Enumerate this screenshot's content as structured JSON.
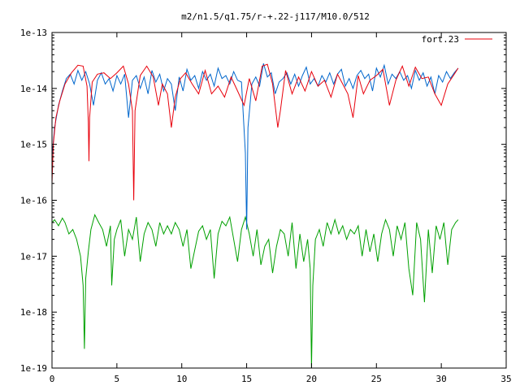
{
  "chart_data": {
    "type": "line",
    "title": "m2/n1.5/q1.75/r-+.22-j117/M10.0/512",
    "xlabel": "",
    "ylabel": "",
    "xlim": [
      0,
      35
    ],
    "ylim": [
      1e-19,
      1e-13
    ],
    "yscale": "log",
    "grid": false,
    "legend_position": "top-right",
    "x_ticks": [
      0,
      5,
      10,
      15,
      20,
      25,
      30,
      35
    ],
    "x_tick_labels": [
      "0",
      "5",
      "10",
      "15",
      "20",
      "25",
      "30",
      "35"
    ],
    "y_ticks": [
      1e-19,
      1e-18,
      1e-17,
      1e-16,
      1e-15,
      1e-14,
      1e-13
    ],
    "y_tick_labels": [
      "1e-19",
      "1e-18",
      "1e-17",
      "1e-16",
      "1e-15",
      "1e-14",
      "1e-13"
    ],
    "series": [
      {
        "name": "fort.23",
        "color": "#e8000b",
        "x": [
          0.0,
          0.1,
          0.3,
          0.6,
          1.0,
          1.5,
          2.0,
          2.4,
          2.7,
          2.8,
          2.85,
          2.9,
          3.1,
          3.5,
          4.0,
          4.5,
          5.0,
          5.5,
          5.9,
          6.2,
          6.3,
          6.4,
          6.8,
          7.3,
          7.8,
          8.2,
          8.5,
          8.9,
          9.2,
          9.5,
          9.9,
          10.3,
          10.8,
          11.3,
          11.8,
          12.3,
          12.8,
          13.3,
          13.8,
          14.3,
          14.8,
          15.2,
          15.7,
          16.2,
          16.6,
          17.0,
          17.4,
          17.6,
          18.0,
          18.5,
          19.0,
          19.5,
          20.0,
          20.5,
          21.0,
          21.5,
          22.0,
          22.4,
          22.8,
          23.2,
          23.6,
          24.0,
          24.5,
          25.0,
          25.5,
          26.0,
          26.5,
          27.0,
          27.5,
          28.0,
          28.5,
          29.0,
          29.5,
          30.0,
          30.5,
          31.0,
          31.3
        ],
        "y": [
          2e-16,
          1e-15,
          3e-15,
          6e-15,
          1.2e-14,
          1.9e-14,
          2.6e-14,
          2.5e-14,
          1.1e-14,
          2.5e-15,
          5e-16,
          3e-15,
          1.3e-14,
          1.8e-14,
          1.9e-14,
          1.5e-14,
          1.9e-14,
          2.5e-14,
          1.2e-14,
          4e-15,
          1e-16,
          4e-15,
          1.7e-14,
          2.5e-14,
          1.6e-14,
          5e-15,
          1.2e-14,
          8e-15,
          2e-15,
          7e-15,
          1.5e-14,
          1.9e-14,
          1.2e-14,
          8e-15,
          2.1e-14,
          8e-15,
          1.1e-14,
          7e-15,
          1.6e-14,
          9e-15,
          5e-15,
          1.5e-14,
          6e-15,
          2.5e-14,
          2.7e-14,
          1.2e-14,
          2e-15,
          4e-15,
          2.1e-14,
          8e-15,
          1.6e-14,
          9e-15,
          2e-14,
          1.1e-14,
          1.4e-14,
          7e-15,
          1.8e-14,
          1.2e-14,
          8e-15,
          3e-15,
          1.7e-14,
          8e-15,
          1.4e-14,
          1.7e-14,
          2.2e-14,
          5e-15,
          1.4e-14,
          2.5e-14,
          1.1e-14,
          2.4e-14,
          1.5e-14,
          1.6e-14,
          8e-15,
          5e-15,
          1.2e-14,
          1.8e-14,
          2.3e-14
        ]
      },
      {
        "name": "",
        "color": "#0066cc",
        "x": [
          0.0,
          0.2,
          0.5,
          0.8,
          1.1,
          1.4,
          1.7,
          2.0,
          2.3,
          2.6,
          2.9,
          3.2,
          3.5,
          3.8,
          4.1,
          4.4,
          4.7,
          5.0,
          5.3,
          5.6,
          5.9,
          6.2,
          6.5,
          6.8,
          7.1,
          7.4,
          7.7,
          8.0,
          8.3,
          8.6,
          8.9,
          9.2,
          9.5,
          9.8,
          10.1,
          10.4,
          10.7,
          11.0,
          11.3,
          11.6,
          11.9,
          12.2,
          12.5,
          12.8,
          13.1,
          13.4,
          13.7,
          14.0,
          14.3,
          14.6,
          14.9,
          15.0,
          15.1,
          15.4,
          15.7,
          16.0,
          16.3,
          16.6,
          16.9,
          17.2,
          17.5,
          17.8,
          18.1,
          18.4,
          18.7,
          19.0,
          19.3,
          19.6,
          19.9,
          20.2,
          20.5,
          20.8,
          21.1,
          21.4,
          21.7,
          22.0,
          22.3,
          22.6,
          22.9,
          23.2,
          23.5,
          23.8,
          24.1,
          24.4,
          24.7,
          25.0,
          25.3,
          25.6,
          25.9,
          26.2,
          26.5,
          26.8,
          27.1,
          27.4,
          27.7,
          28.0,
          28.3,
          28.6,
          28.9,
          29.2,
          29.5,
          29.8,
          30.1,
          30.4,
          30.7,
          31.0,
          31.3
        ],
        "y": [
          6e-16,
          2e-15,
          5e-15,
          9e-15,
          1.5e-14,
          1.8e-14,
          1.2e-14,
          2.1e-14,
          1.4e-14,
          2e-14,
          1.2e-14,
          5e-15,
          1.4e-14,
          1.9e-14,
          1.2e-14,
          1.5e-14,
          9e-15,
          1.7e-14,
          1.2e-14,
          1.8e-14,
          3e-15,
          1.4e-14,
          1.7e-14,
          1e-14,
          1.6e-14,
          8e-15,
          2.1e-14,
          1.3e-14,
          1.8e-14,
          9e-15,
          1.5e-14,
          1.2e-14,
          4e-15,
          1.6e-14,
          9e-15,
          2.2e-14,
          1.4e-14,
          1.7e-14,
          1e-14,
          2e-14,
          1.4e-14,
          1.8e-14,
          1.1e-14,
          2.3e-14,
          1.5e-14,
          1.7e-14,
          1.2e-14,
          2e-14,
          1.4e-14,
          1.3e-14,
          7e-16,
          3e-17,
          2e-15,
          1.2e-14,
          1.6e-14,
          1.1e-14,
          2.8e-14,
          1.6e-14,
          1.9e-14,
          8e-15,
          1.3e-14,
          1.5e-14,
          1.9e-14,
          1.2e-14,
          1.8e-14,
          1.1e-14,
          1.7e-14,
          2.4e-14,
          1.2e-14,
          1.5e-14,
          1.1e-14,
          1.7e-14,
          1.3e-14,
          1.9e-14,
          1.2e-14,
          1.8e-14,
          2.2e-14,
          1.1e-14,
          1.5e-14,
          1e-14,
          1.7e-14,
          2.1e-14,
          1.5e-14,
          1.8e-14,
          9e-15,
          2.3e-14,
          1.6e-14,
          2.6e-14,
          1.2e-14,
          1.8e-14,
          1.5e-14,
          2e-14,
          1.4e-14,
          1.7e-14,
          1e-14,
          2.1e-14,
          1.4e-14,
          1.9e-14,
          1.1e-14,
          1.6e-14,
          8e-15,
          1.7e-14,
          1.3e-14,
          2e-14,
          1.5e-14,
          1.9e-14,
          2.3e-14
        ]
      },
      {
        "name": "",
        "color": "#00a000",
        "x": [
          0.0,
          0.2,
          0.5,
          0.8,
          1.0,
          1.3,
          1.6,
          1.9,
          2.2,
          2.4,
          2.5,
          2.6,
          2.8,
          3.0,
          3.3,
          3.6,
          3.9,
          4.2,
          4.5,
          4.6,
          4.8,
          5.0,
          5.3,
          5.6,
          5.9,
          6.2,
          6.5,
          6.8,
          7.1,
          7.4,
          7.7,
          8.0,
          8.3,
          8.6,
          8.9,
          9.2,
          9.5,
          9.8,
          10.1,
          10.4,
          10.7,
          11.0,
          11.3,
          11.6,
          11.9,
          12.2,
          12.5,
          12.8,
          13.1,
          13.4,
          13.7,
          14.0,
          14.3,
          14.6,
          14.9,
          15.2,
          15.5,
          15.8,
          16.1,
          16.4,
          16.7,
          17.0,
          17.3,
          17.6,
          17.9,
          18.2,
          18.5,
          18.8,
          19.1,
          19.4,
          19.7,
          19.9,
          20.0,
          20.1,
          20.3,
          20.6,
          20.9,
          21.2,
          21.5,
          21.8,
          22.1,
          22.4,
          22.7,
          23.0,
          23.3,
          23.6,
          23.9,
          24.2,
          24.5,
          24.8,
          25.1,
          25.4,
          25.7,
          26.0,
          26.3,
          26.6,
          26.9,
          27.2,
          27.5,
          27.8,
          28.1,
          28.4,
          28.7,
          29.0,
          29.3,
          29.6,
          29.9,
          30.2,
          30.5,
          30.8,
          31.1,
          31.3
        ],
        "y": [
          4e-17,
          4.5e-17,
          3.5e-17,
          4.8e-17,
          4e-17,
          2.5e-17,
          3e-17,
          2e-17,
          1e-17,
          3e-18,
          2.2e-19,
          4e-18,
          1.2e-17,
          3e-17,
          5.5e-17,
          4e-17,
          3e-17,
          1.5e-17,
          3.5e-17,
          3e-18,
          2e-17,
          3e-17,
          4.5e-17,
          1e-17,
          3e-17,
          2e-17,
          5e-17,
          8e-18,
          2.5e-17,
          4e-17,
          3e-17,
          1.5e-17,
          4e-17,
          2.5e-17,
          3.5e-17,
          2.5e-17,
          4e-17,
          3e-17,
          1.5e-17,
          3e-17,
          6e-18,
          1.3e-17,
          2.8e-17,
          3.5e-17,
          2e-17,
          3e-17,
          4e-18,
          2.5e-17,
          4.2e-17,
          3.5e-17,
          5e-17,
          2e-17,
          8e-18,
          3e-17,
          5e-17,
          2.5e-17,
          1e-17,
          3e-17,
          7e-18,
          1.5e-17,
          2e-17,
          5e-18,
          1.5e-17,
          3e-17,
          2.5e-17,
          1e-17,
          4e-17,
          6e-18,
          2.5e-17,
          8e-18,
          2e-17,
          6e-18,
          1e-19,
          3e-18,
          2e-17,
          3e-17,
          1.5e-17,
          4e-17,
          2.5e-17,
          4.5e-17,
          2.5e-17,
          3.5e-17,
          2e-17,
          3e-17,
          2.5e-17,
          3.5e-17,
          1e-17,
          3e-17,
          1.2e-17,
          2.5e-17,
          8e-18,
          2.5e-17,
          4.5e-17,
          3e-17,
          1e-17,
          3.5e-17,
          2e-17,
          4e-17,
          6e-18,
          2e-18,
          4e-17,
          2e-17,
          1.5e-18,
          3e-17,
          5e-18,
          3.5e-17,
          2e-17,
          4e-17,
          7e-18,
          3e-17,
          4e-17,
          4.5e-17
        ]
      }
    ]
  }
}
